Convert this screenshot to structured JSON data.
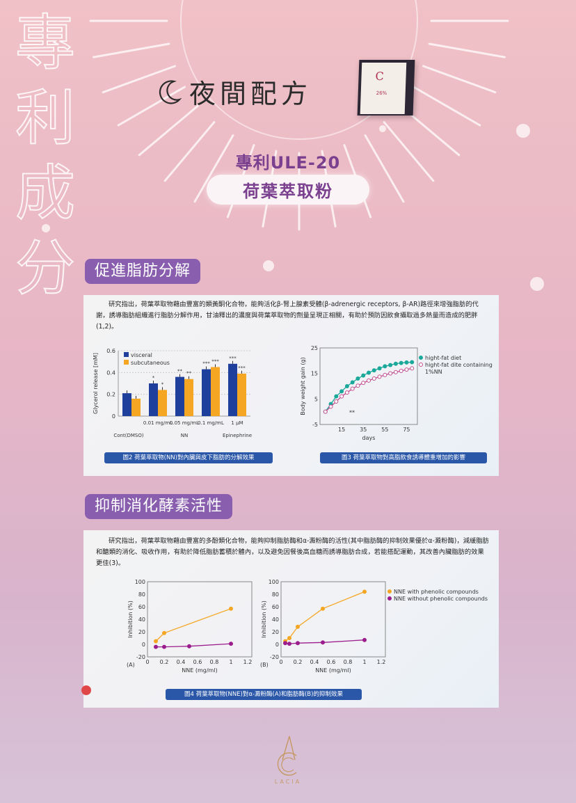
{
  "vertical_title": [
    "專",
    "利",
    "成",
    "分"
  ],
  "night_formula": "夜間配方",
  "product": {
    "logo": "C",
    "label": "26%"
  },
  "ule": {
    "line1": "專利ULE-20",
    "line2": "荷葉萃取粉"
  },
  "section1": {
    "tag": "促進脂肪分解",
    "paragraph": "研究指出，荷葉萃取物藉由豐富的類黃酮化合物，能夠活化β-腎上腺素受體(β-adrenergic receptors, β-AR)路徑來增強脂肪的代謝，誘導脂肪組織進行脂肪分解作用，甘油釋出的濃度與荷葉萃取物的劑量呈現正相關，有助於預防因飲食攝取過多熱量而造成的肥胖(1,2)。",
    "caption_left": "圖2 荷葉萃取物(NN)對內臟與皮下脂肪的分解效果",
    "caption_right": "圖3 荷葉萃取物對高脂飲食誘導體重增加的影響"
  },
  "section2": {
    "tag": "抑制消化酵素活性",
    "paragraph": "研究指出，荷葉萃取物藉由豐富的多酚類化合物，能夠抑制脂肪酶和α-澱粉酶的活性(其中脂肪酶的抑制效果優於α-澱粉酶)，減緩脂肪和醣類的消化、吸收作用，有助於降低脂肪蓄積於體內，以及避免因餐後高血糖而誘導脂肪合成，若能搭配運動，其改善內臟脂肪的效果更佳(3)。",
    "caption": "圖4 荷葉萃取物(NNE)對α-澱粉酶(A)和脂肪酶(B)的抑制效果"
  },
  "brand": "LACIA",
  "chart_data": [
    {
      "type": "bar",
      "ylabel": "Glycerol release [mM]",
      "ylim": [
        0,
        0.6
      ],
      "yticks": [
        "0.6",
        "0.4",
        "0.2",
        "0"
      ],
      "categories": [
        "Cont(DMSO)",
        "0.01 mg/mL",
        "0.05 mg/mL",
        "0.1 mg/mL",
        "1 μM"
      ],
      "group_labels": [
        "Cont(DMSO)",
        "NN",
        "Epinephrine"
      ],
      "series": [
        {
          "name": "visceral",
          "color": "#1f3f9c",
          "values": [
            0.21,
            0.3,
            0.36,
            0.43,
            0.48
          ],
          "marks": [
            "",
            "*",
            "**",
            "***",
            "***"
          ]
        },
        {
          "name": "subcutaneous",
          "color": "#f5a623",
          "values": [
            0.16,
            0.24,
            0.34,
            0.45,
            0.39
          ],
          "marks": [
            "",
            "*",
            "**",
            "***",
            "***"
          ]
        }
      ]
    },
    {
      "type": "line",
      "ylabel": "Body weight gain (g)",
      "xlabel": "days",
      "xticks": [
        "15",
        "35",
        "55",
        "75"
      ],
      "yticks": [
        "25",
        "15",
        "5",
        "-5"
      ],
      "xlim": [
        -5,
        85
      ],
      "ylim": [
        -5,
        25
      ],
      "annotation": "**",
      "series": [
        {
          "name": "hight-fat diet",
          "color": "#1aa89a",
          "x": [
            0,
            5,
            10,
            15,
            20,
            25,
            30,
            35,
            40,
            45,
            50,
            55,
            60,
            65,
            70,
            75,
            80
          ],
          "y": [
            0,
            3,
            6,
            8,
            10,
            11.5,
            13,
            14.2,
            15.3,
            16.2,
            17,
            17.8,
            18.3,
            18.8,
            19.1,
            19.3,
            19.4
          ]
        },
        {
          "name": "hight-fat dite containing",
          "name2": "1%NN",
          "color": "#c24c8f",
          "x": [
            0,
            5,
            10,
            15,
            20,
            25,
            30,
            35,
            40,
            45,
            50,
            55,
            60,
            65,
            70,
            75,
            80
          ],
          "y": [
            0,
            2,
            4,
            6,
            7.5,
            9,
            10.2,
            11.3,
            12.2,
            13,
            13.7,
            14.4,
            15,
            15.5,
            16,
            16.5,
            17
          ]
        }
      ]
    },
    {
      "type": "line",
      "panel": "(A)",
      "ylabel": "Inhibition (%)",
      "xlabel": "NNE (mg/ml)",
      "xticks": [
        "0",
        "0.2",
        "0.4",
        "0.6",
        "0.8",
        "1",
        "1.2"
      ],
      "yticks": [
        "100",
        "80",
        "60",
        "40",
        "20",
        "0",
        "-20"
      ],
      "xlim": [
        0,
        1.25
      ],
      "ylim": [
        -20,
        100
      ],
      "series": [
        {
          "name": "NNE with phenolic compounds",
          "color": "#f5a623",
          "x": [
            0.1,
            0.2,
            1.0
          ],
          "y": [
            5,
            18,
            57
          ]
        },
        {
          "name": "NNE without phenolic compounds",
          "color": "#9b1c8c",
          "x": [
            0.1,
            0.2,
            0.5,
            1.0
          ],
          "y": [
            -4,
            -4,
            -3,
            1
          ]
        }
      ]
    },
    {
      "type": "line",
      "panel": "(B)",
      "ylabel": "Inhibition (%)",
      "xlabel": "NNE (mg/ml)",
      "xticks": [
        "0",
        "0.2",
        "0.4",
        "0.6",
        "0.8",
        "1",
        "1.2"
      ],
      "yticks": [
        "100",
        "80",
        "60",
        "40",
        "20",
        "0",
        "-20"
      ],
      "xlim": [
        0,
        1.25
      ],
      "ylim": [
        -20,
        100
      ],
      "series": [
        {
          "name": "NNE with phenolic compounds",
          "color": "#f5a623",
          "x": [
            0.05,
            0.1,
            0.2,
            0.5,
            1.0
          ],
          "y": [
            5,
            10,
            28,
            57,
            84
          ]
        },
        {
          "name": "NNE without phenolic compounds",
          "color": "#9b1c8c",
          "x": [
            0.05,
            0.1,
            0.2,
            0.5,
            1.0
          ],
          "y": [
            2,
            1,
            2,
            3,
            7
          ]
        }
      ]
    }
  ]
}
